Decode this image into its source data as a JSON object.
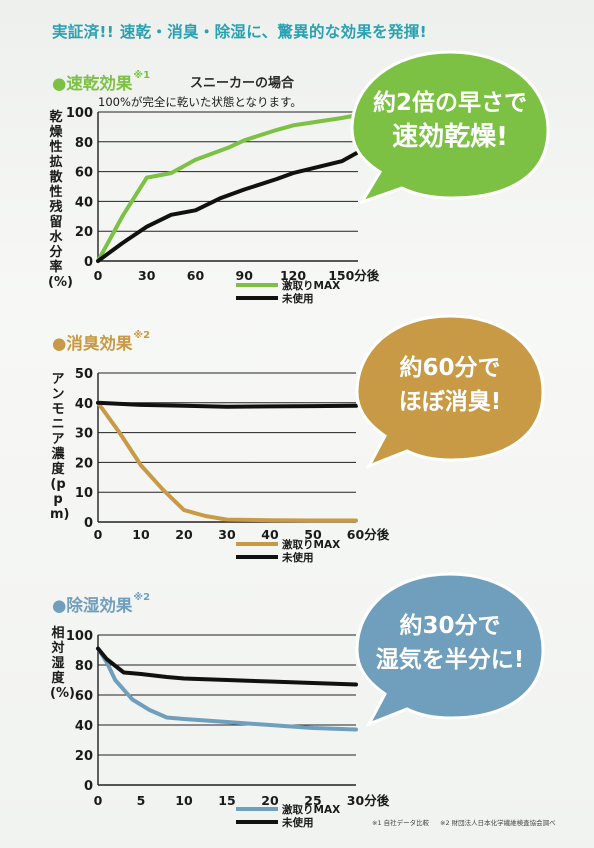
{
  "headline": "実証済!! 速乾・消臭・除湿に、驚異的な効果を発揮!",
  "footnote1": "※1 自社データ比較",
  "footnote2": "※2 財団法人日本化学繊維検査協会調べ",
  "colors": {
    "green": "#7dc144",
    "tan": "#c99a45",
    "blue": "#6f9fbd",
    "black": "#111111",
    "teal": "#2aa1b1"
  },
  "sections": [
    {
      "title": "●速乾効果",
      "sup": "※1",
      "subtitle": "スニーカーの場合",
      "note": "100%が完全に乾いた状態となります。",
      "ylabel": "乾燥性拡散性残留水分率(%)",
      "bubble": {
        "line1": "約2倍の早さで",
        "line2": "速効乾燥!"
      }
    },
    {
      "title": "●消臭効果",
      "sup": "※2",
      "ylabel": "アンモニア濃度(ppm)",
      "bubble": {
        "line1": "約60分で",
        "line2": "ほぼ消臭!"
      }
    },
    {
      "title": "●除湿効果",
      "sup": "※2",
      "ylabel": "相対湿度(%)",
      "bubble": {
        "line1": "約30分で",
        "line2": "湿気を半分に!"
      }
    }
  ],
  "chart_data": [
    {
      "type": "line",
      "ylim": [
        0,
        100
      ],
      "yticks": [
        0,
        20,
        40,
        60,
        80,
        100
      ],
      "xlim": [
        0,
        160
      ],
      "xticks": [
        0,
        30,
        60,
        90,
        120,
        150
      ],
      "xtick_labels": [
        "0",
        "30",
        "60",
        "90",
        "120",
        "150分後"
      ],
      "grid": true,
      "legend": "bottom-right",
      "series": [
        {
          "name": "激取りMAX",
          "color": "#7dc144",
          "x": [
            0,
            15,
            30,
            45,
            60,
            80,
            90,
            110,
            120,
            150,
            160
          ],
          "y": [
            0,
            30,
            56,
            59,
            68,
            76,
            81,
            88,
            91,
            96,
            98
          ]
        },
        {
          "name": "未使用",
          "color": "#111111",
          "x": [
            0,
            15,
            30,
            45,
            60,
            75,
            90,
            110,
            120,
            150,
            160
          ],
          "y": [
            0,
            12,
            23,
            31,
            34,
            42,
            48,
            55,
            59,
            67,
            73
          ]
        }
      ]
    },
    {
      "type": "line",
      "ylim": [
        0,
        50
      ],
      "yticks": [
        0,
        10,
        20,
        30,
        40,
        50
      ],
      "xlim": [
        0,
        60
      ],
      "xticks": [
        0,
        10,
        20,
        30,
        40,
        50,
        60
      ],
      "xtick_labels": [
        "0",
        "10",
        "20",
        "30",
        "40",
        "50",
        "60分後"
      ],
      "grid": true,
      "legend": "bottom-right",
      "series": [
        {
          "name": "激取りMAX",
          "color": "#c99a45",
          "x": [
            0,
            5,
            10,
            15,
            20,
            25,
            30,
            40,
            50,
            60
          ],
          "y": [
            40,
            30,
            19,
            11,
            4,
            2,
            0.8,
            0.6,
            0.5,
            0.5
          ]
        },
        {
          "name": "未使用",
          "color": "#111111",
          "x": [
            0,
            10,
            20,
            30,
            40,
            50,
            60
          ],
          "y": [
            40,
            39.3,
            39,
            38.7,
            38.8,
            38.9,
            39
          ]
        }
      ]
    },
    {
      "type": "line",
      "ylim": [
        0,
        100
      ],
      "yticks": [
        0,
        20,
        40,
        60,
        80,
        100
      ],
      "xlim": [
        0,
        30
      ],
      "xticks": [
        0,
        5,
        10,
        15,
        20,
        25,
        30
      ],
      "xtick_labels": [
        "0",
        "5",
        "10",
        "15",
        "20",
        "25",
        "30分後"
      ],
      "grid": true,
      "legend": "bottom-right",
      "series": [
        {
          "name": "激取りMAX",
          "color": "#6f9fbd",
          "x": [
            0,
            1,
            2,
            4,
            6,
            8,
            10,
            15,
            20,
            25,
            30
          ],
          "y": [
            91,
            82,
            70,
            57,
            50,
            45,
            44,
            42,
            40,
            38,
            37
          ]
        },
        {
          "name": "未使用",
          "color": "#111111",
          "x": [
            0,
            1,
            3,
            5,
            8,
            10,
            15,
            20,
            25,
            30
          ],
          "y": [
            91,
            84,
            75,
            74,
            72,
            71,
            70,
            69,
            68,
            67
          ]
        }
      ]
    }
  ]
}
